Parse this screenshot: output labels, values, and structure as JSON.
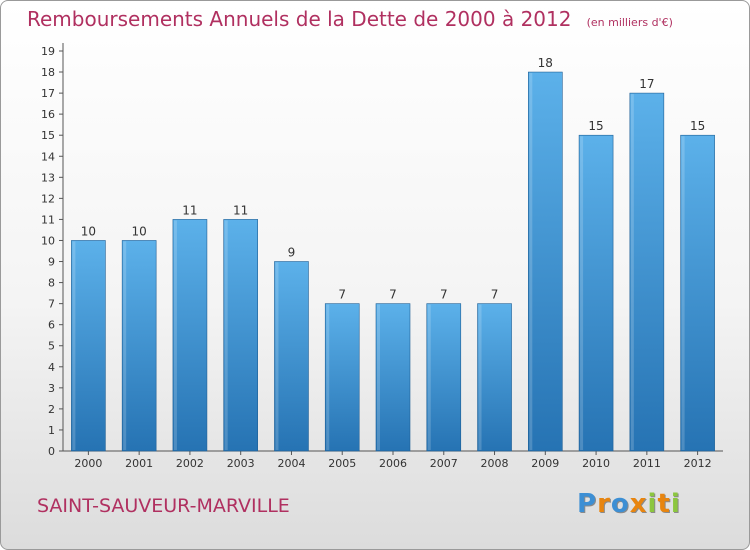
{
  "chart_data": {
    "type": "bar",
    "title": "Remboursements Annuels de la Dette de 2000 à 2012",
    "unit_note": "(en milliers d'€)",
    "categories": [
      "2000",
      "2001",
      "2002",
      "2003",
      "2004",
      "2005",
      "2006",
      "2007",
      "2008",
      "2009",
      "2010",
      "2011",
      "2012"
    ],
    "values": [
      10,
      10,
      11,
      11,
      9,
      7,
      7,
      7,
      7,
      18,
      15,
      17,
      15
    ],
    "data_labels": [
      "10",
      "10",
      "11",
      "11",
      "9",
      "7",
      "7",
      "7",
      "7",
      "18",
      "15",
      "17",
      "15"
    ],
    "y_ticks": [
      "0",
      "1",
      "2",
      "3",
      "4",
      "5",
      "6",
      "7",
      "8",
      "9",
      "10",
      "11",
      "12",
      "13",
      "14",
      "15",
      "16",
      "17",
      "18",
      "19"
    ],
    "ylim": [
      0,
      19
    ],
    "grid": false,
    "bar_color": "#3a8fd0",
    "bar_color_light": "#5cb1ea",
    "bar_color_dark": "#2673b3"
  },
  "footer": {
    "commune": "SAINT-SAUVEUR-MARVILLE",
    "brand": [
      "P",
      "r",
      "o",
      "x",
      "i",
      "t",
      "i"
    ],
    "brand_colors": [
      "#3d8fd4",
      "#e8850f",
      "#3d8fd4",
      "#e8850f",
      "#8cc63f",
      "#e8850f",
      "#8cc63f"
    ]
  }
}
